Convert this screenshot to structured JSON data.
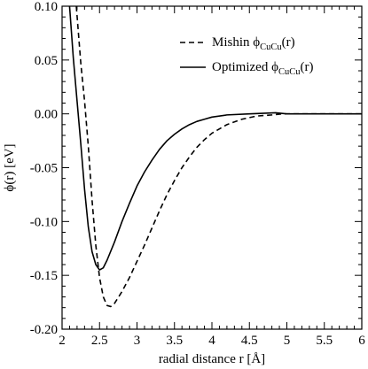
{
  "chart_data": {
    "type": "line",
    "xlabel": "radial distance r [Å]",
    "ylabel": "ϕ(r) [eV]",
    "xlim": [
      2,
      6
    ],
    "ylim": [
      -0.2,
      0.1
    ],
    "grid": false,
    "legend_position": "top-right",
    "x_ticks": [
      "2",
      "2.5",
      "3",
      "3.5",
      "4",
      "4.5",
      "5",
      "5.5",
      "6"
    ],
    "y_ticks": [
      "0.10",
      "0.05",
      "0.00",
      "-0.05",
      "-0.10",
      "-0.15",
      "-0.20"
    ],
    "series": [
      {
        "name": "Mishin ϕCuCu(r)",
        "legend_main": "Mishin ϕ",
        "legend_sub": "CuCu",
        "legend_suffix": "(r)",
        "line_style": "dashed",
        "color": "#000000",
        "points": [
          [
            2.19,
            0.1
          ],
          [
            2.25,
            0.047
          ],
          [
            2.3,
            0.012
          ],
          [
            2.35,
            -0.03
          ],
          [
            2.4,
            -0.08
          ],
          [
            2.45,
            -0.122
          ],
          [
            2.5,
            -0.152
          ],
          [
            2.55,
            -0.17
          ],
          [
            2.6,
            -0.178
          ],
          [
            2.65,
            -0.179
          ],
          [
            2.7,
            -0.176
          ],
          [
            2.8,
            -0.165
          ],
          [
            2.9,
            -0.152
          ],
          [
            3.0,
            -0.137
          ],
          [
            3.1,
            -0.122
          ],
          [
            3.2,
            -0.106
          ],
          [
            3.3,
            -0.09
          ],
          [
            3.4,
            -0.075
          ],
          [
            3.5,
            -0.062
          ],
          [
            3.6,
            -0.05
          ],
          [
            3.7,
            -0.04
          ],
          [
            3.8,
            -0.031
          ],
          [
            3.9,
            -0.024
          ],
          [
            4.0,
            -0.018
          ],
          [
            4.2,
            -0.01
          ],
          [
            4.4,
            -0.005
          ],
          [
            4.6,
            -0.002
          ],
          [
            4.8,
            -0.001
          ],
          [
            4.95,
            0.0
          ],
          [
            5.2,
            0.0
          ],
          [
            5.5,
            0.0
          ],
          [
            6.0,
            0.0
          ]
        ]
      },
      {
        "name": "Optimized ϕCuCu(r)",
        "legend_main": "Optimized ϕ",
        "legend_sub": "CuCu",
        "legend_suffix": "(r)",
        "line_style": "solid",
        "color": "#000000",
        "points": [
          [
            2.1,
            0.1
          ],
          [
            2.15,
            0.052
          ],
          [
            2.2,
            0.012
          ],
          [
            2.25,
            -0.028
          ],
          [
            2.3,
            -0.07
          ],
          [
            2.35,
            -0.105
          ],
          [
            2.4,
            -0.128
          ],
          [
            2.45,
            -0.14
          ],
          [
            2.5,
            -0.145
          ],
          [
            2.55,
            -0.143
          ],
          [
            2.6,
            -0.136
          ],
          [
            2.7,
            -0.119
          ],
          [
            2.8,
            -0.1
          ],
          [
            2.9,
            -0.083
          ],
          [
            3.0,
            -0.067
          ],
          [
            3.1,
            -0.054
          ],
          [
            3.2,
            -0.043
          ],
          [
            3.3,
            -0.033
          ],
          [
            3.4,
            -0.025
          ],
          [
            3.5,
            -0.019
          ],
          [
            3.6,
            -0.014
          ],
          [
            3.7,
            -0.01
          ],
          [
            3.8,
            -0.007
          ],
          [
            3.9,
            -0.005
          ],
          [
            4.0,
            -0.003
          ],
          [
            4.2,
            -0.001
          ],
          [
            4.5,
            0.0
          ],
          [
            4.85,
            0.001
          ],
          [
            5.0,
            0.0
          ],
          [
            5.5,
            0.0
          ],
          [
            6.0,
            0.0
          ]
        ]
      }
    ]
  }
}
